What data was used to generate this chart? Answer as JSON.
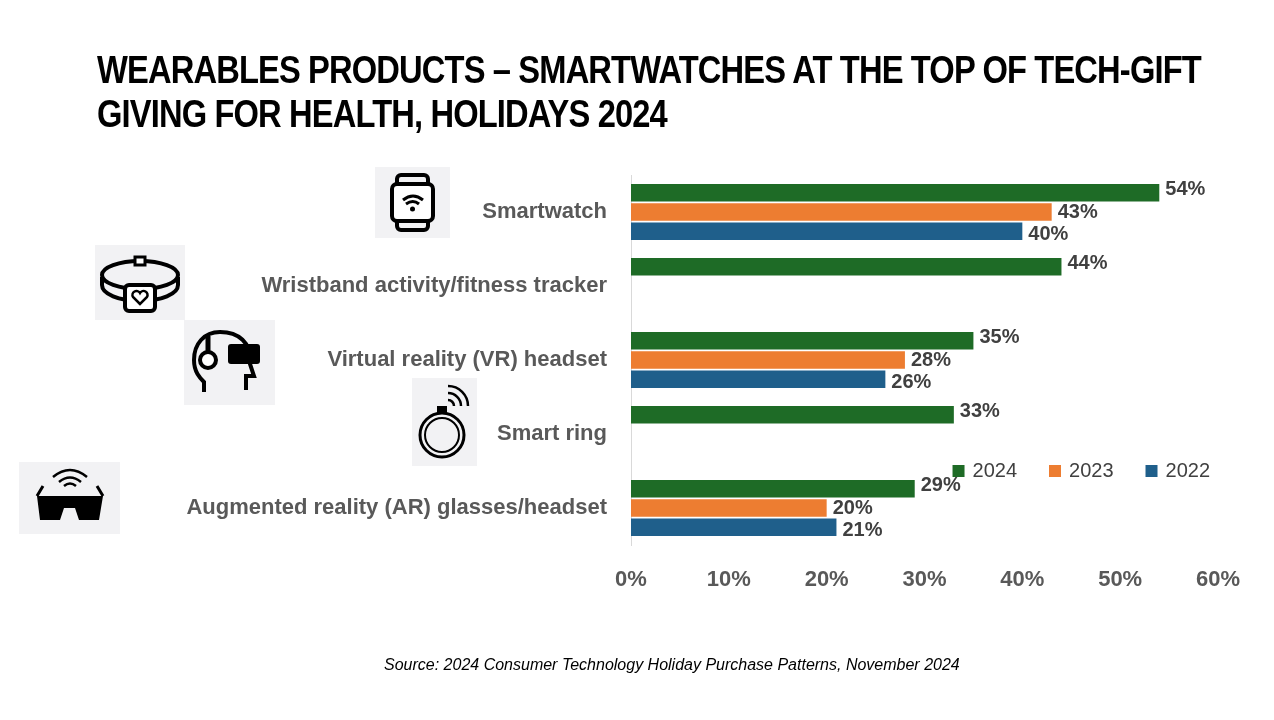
{
  "chart_data": {
    "type": "bar",
    "orientation": "horizontal",
    "title": "WEARABLES PRODUCTS – SMARTWATCHES AT THE TOP OF TECH-GIFT GIVING FOR HEALTH, HOLIDAYS 2024",
    "categories": [
      "Smartwatch",
      "Wristband activity/fitness tracker",
      "Virtual reality (VR) headset",
      "Smart ring",
      "Augmented reality (AR) glasses/headset"
    ],
    "series": [
      {
        "name": "2024",
        "color": "#1e6b26",
        "values": [
          54,
          44,
          35,
          33,
          29
        ],
        "value_labels": [
          "54%",
          "44%",
          "35%",
          "33%",
          "29%"
        ]
      },
      {
        "name": "2023",
        "color": "#ed7d31",
        "values": [
          43,
          null,
          28,
          null,
          20
        ],
        "value_labels": [
          "43%",
          null,
          "28%",
          null,
          "20%"
        ]
      },
      {
        "name": "2022",
        "color": "#1f5f8b",
        "values": [
          40,
          null,
          26,
          null,
          21
        ],
        "value_labels": [
          "40%",
          null,
          "26%",
          null,
          "21%"
        ]
      }
    ],
    "xlim": [
      0,
      60
    ],
    "xticks": [
      {
        "value": 0,
        "label": "0%"
      },
      {
        "value": 10,
        "label": "10%"
      },
      {
        "value": 20,
        "label": "20%"
      },
      {
        "value": 30,
        "label": "30%"
      },
      {
        "value": 40,
        "label": "40%"
      },
      {
        "value": 50,
        "label": "50%"
      },
      {
        "value": 60,
        "label": "60%"
      }
    ],
    "grid": false,
    "legend": "bottom right",
    "annotations": [
      "Source: 2024 Consumer Technology Holiday Purchase Patterns, November 2024"
    ]
  }
}
